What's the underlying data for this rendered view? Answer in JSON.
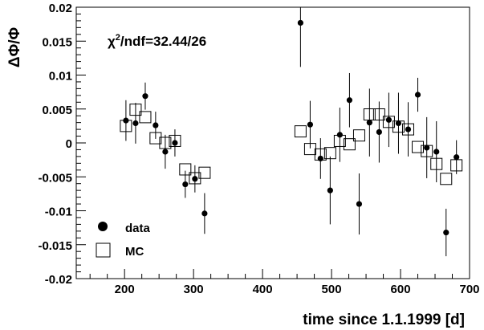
{
  "chart_data": {
    "type": "scatter",
    "xlabel": "time since 1.1.1999 [d]",
    "ylabel": "ΔΦ/Φ",
    "annotation": {
      "chi_label": "χ",
      "exp": "2",
      "rest": "/ndf=32.44/26"
    },
    "xlim": [
      130,
      700
    ],
    "ylim": [
      -0.02,
      0.02
    ],
    "x_ticks": [
      200,
      300,
      400,
      500,
      600,
      700
    ],
    "x_tick_labels": [
      "200",
      "300",
      "400",
      "500",
      "600",
      "700"
    ],
    "y_ticks": [
      0.02,
      0.015,
      0.01,
      0.005,
      0,
      -0.005,
      -0.01,
      -0.015,
      -0.02
    ],
    "y_tick_labels": [
      "0.02",
      "0.015",
      "0.01",
      "0.005",
      "0",
      "-0.005",
      "-0.01",
      "-0.015",
      "-0.02"
    ],
    "grid": false,
    "legend_position": "bottom-left",
    "series": [
      {
        "name": "data",
        "marker": "filled-circle",
        "points": [
          {
            "x": 202,
            "y": 0.0033,
            "err": 0.003
          },
          {
            "x": 216,
            "y": 0.0029,
            "err": 0.003
          },
          {
            "x": 230,
            "y": 0.0069,
            "err": 0.002
          },
          {
            "x": 245,
            "y": 0.0026,
            "err": 0.002
          },
          {
            "x": 259,
            "y": -0.0013,
            "err": 0.0025
          },
          {
            "x": 273,
            "y": 0.0,
            "err": 0.002
          },
          {
            "x": 288,
            "y": -0.0061,
            "err": 0.002
          },
          {
            "x": 302,
            "y": -0.0053,
            "err": 0.002
          },
          {
            "x": 316,
            "y": -0.0104,
            "err": 0.003
          },
          {
            "x": 455,
            "y": 0.0177,
            "err": 0.0065
          },
          {
            "x": 469,
            "y": 0.0027,
            "err": 0.0035
          },
          {
            "x": 484,
            "y": -0.0023,
            "err": 0.003
          },
          {
            "x": 498,
            "y": -0.007,
            "err": 0.005
          },
          {
            "x": 512,
            "y": 0.0012,
            "err": 0.004
          },
          {
            "x": 526,
            "y": 0.0063,
            "err": 0.004
          },
          {
            "x": 540,
            "y": -0.009,
            "err": 0.0045
          },
          {
            "x": 555,
            "y": 0.003,
            "err": 0.005
          },
          {
            "x": 569,
            "y": 0.0016,
            "err": 0.0045
          },
          {
            "x": 583,
            "y": 0.0034,
            "err": 0.004
          },
          {
            "x": 597,
            "y": 0.0029,
            "err": 0.0045
          },
          {
            "x": 611,
            "y": 0.002,
            "err": 0.004
          },
          {
            "x": 625,
            "y": 0.0071,
            "err": 0.0025
          },
          {
            "x": 638,
            "y": -0.0007,
            "err": 0.0045
          },
          {
            "x": 652,
            "y": -0.0013,
            "err": 0.0045
          },
          {
            "x": 666,
            "y": -0.0132,
            "err": 0.0035
          },
          {
            "x": 681,
            "y": -0.0021,
            "err": 0.0025
          }
        ]
      },
      {
        "name": "MC",
        "marker": "open-square",
        "points": [
          {
            "x": 202,
            "y": 0.0025
          },
          {
            "x": 216,
            "y": 0.0049
          },
          {
            "x": 230,
            "y": 0.0038
          },
          {
            "x": 245,
            "y": 0.0007
          },
          {
            "x": 259,
            "y": 0.0
          },
          {
            "x": 273,
            "y": 0.0003
          },
          {
            "x": 288,
            "y": -0.0039
          },
          {
            "x": 302,
            "y": -0.0052
          },
          {
            "x": 316,
            "y": -0.0044
          },
          {
            "x": 455,
            "y": 0.0017
          },
          {
            "x": 469,
            "y": -0.0009
          },
          {
            "x": 484,
            "y": -0.0017
          },
          {
            "x": 498,
            "y": -0.0015
          },
          {
            "x": 512,
            "y": 0.0003
          },
          {
            "x": 526,
            "y": -0.0002
          },
          {
            "x": 540,
            "y": 0.0011
          },
          {
            "x": 555,
            "y": 0.0042
          },
          {
            "x": 569,
            "y": 0.0042
          },
          {
            "x": 583,
            "y": 0.0031
          },
          {
            "x": 597,
            "y": 0.0024
          },
          {
            "x": 611,
            "y": 0.002
          },
          {
            "x": 625,
            "y": -0.0006
          },
          {
            "x": 638,
            "y": -0.0012
          },
          {
            "x": 652,
            "y": -0.0031
          },
          {
            "x": 666,
            "y": -0.0053
          },
          {
            "x": 681,
            "y": -0.0033
          }
        ]
      }
    ]
  }
}
